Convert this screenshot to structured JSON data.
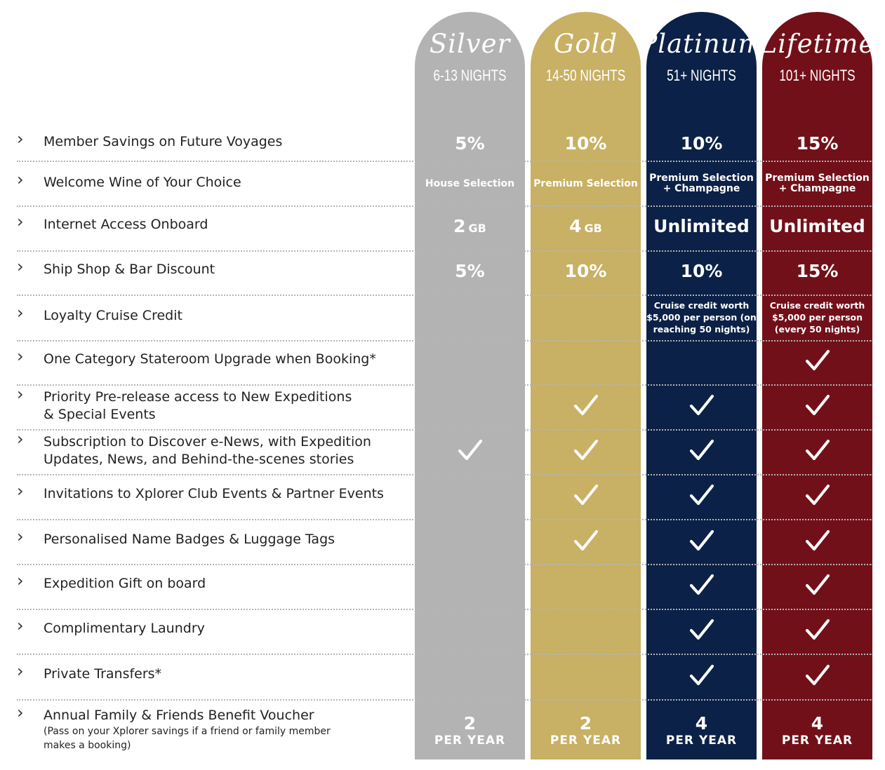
{
  "colors": {
    "silver": "#b3b3b3",
    "gold": "#c8b064",
    "platinum": "#0b2147",
    "lifetime": "#721019"
  },
  "tiers": [
    {
      "name": "Silver",
      "nights": "6-13 NIGHTS"
    },
    {
      "name": "Gold",
      "nights": "14-50 NIGHTS"
    },
    {
      "name": "Platinum",
      "nights": "51+ NIGHTS"
    },
    {
      "name": "Lifetime",
      "nights": "101+ NIGHTS"
    }
  ],
  "benefits": [
    {
      "label": "Member Savings on Future Voyages",
      "values": [
        "5%",
        "10%",
        "10%",
        "15%"
      ]
    },
    {
      "label": "Welcome Wine of Your Choice",
      "values": [
        "House Selection",
        "Premium Selection",
        "Premium Selection\n+ Champagne",
        "Premium Selection\n+ Champagne"
      ]
    },
    {
      "label": "Internet Access Onboard",
      "values": [
        {
          "num": "2",
          "unit": "GB"
        },
        {
          "num": "4",
          "unit": "GB"
        },
        "Unlimited",
        "Unlimited"
      ]
    },
    {
      "label": "Ship Shop & Bar Discount",
      "values": [
        "5%",
        "10%",
        "10%",
        "15%"
      ]
    },
    {
      "label": "Loyalty Cruise Credit",
      "values": [
        "",
        "",
        "Cruise credit worth\n$5,000 per person (on\nreaching 50 nights)",
        "Cruise credit worth\n$5,000 per person\n(every 50 nights)"
      ]
    },
    {
      "label": "One Category Stateroom Upgrade when Booking*",
      "checks": [
        false,
        false,
        false,
        true
      ]
    },
    {
      "label": "Priority Pre-release access to New Expeditions\n& Special Events",
      "checks": [
        false,
        true,
        true,
        true
      ]
    },
    {
      "label": "Subscription to Discover e-News, with Expedition\nUpdates, News, and Behind-the-scenes stories",
      "checks": [
        true,
        true,
        true,
        true
      ]
    },
    {
      "label": "Invitations to Xplorer Club Events & Partner Events",
      "checks": [
        false,
        true,
        true,
        true
      ]
    },
    {
      "label": "Personalised Name Badges & Luggage Tags",
      "checks": [
        false,
        true,
        true,
        true
      ]
    },
    {
      "label": "Expedition Gift on board",
      "checks": [
        false,
        false,
        true,
        true
      ]
    },
    {
      "label": "Complimentary Laundry",
      "checks": [
        false,
        false,
        true,
        true
      ]
    },
    {
      "label": "Private Transfers*",
      "checks": [
        false,
        false,
        true,
        true
      ]
    },
    {
      "label": "Annual Family & Friends Benefit Voucher",
      "sublabel": "(Pass on your Xplorer savings if a friend or family member\nmakes a booking)",
      "values": [
        {
          "num": "2",
          "per": "PER YEAR"
        },
        {
          "num": "2",
          "per": "PER YEAR"
        },
        {
          "num": "4",
          "per": "PER YEAR"
        },
        {
          "num": "4",
          "per": "PER YEAR"
        }
      ]
    }
  ],
  "icons": {
    "row_marker": "chevron-right-icon",
    "included": "checkmark-icon"
  }
}
